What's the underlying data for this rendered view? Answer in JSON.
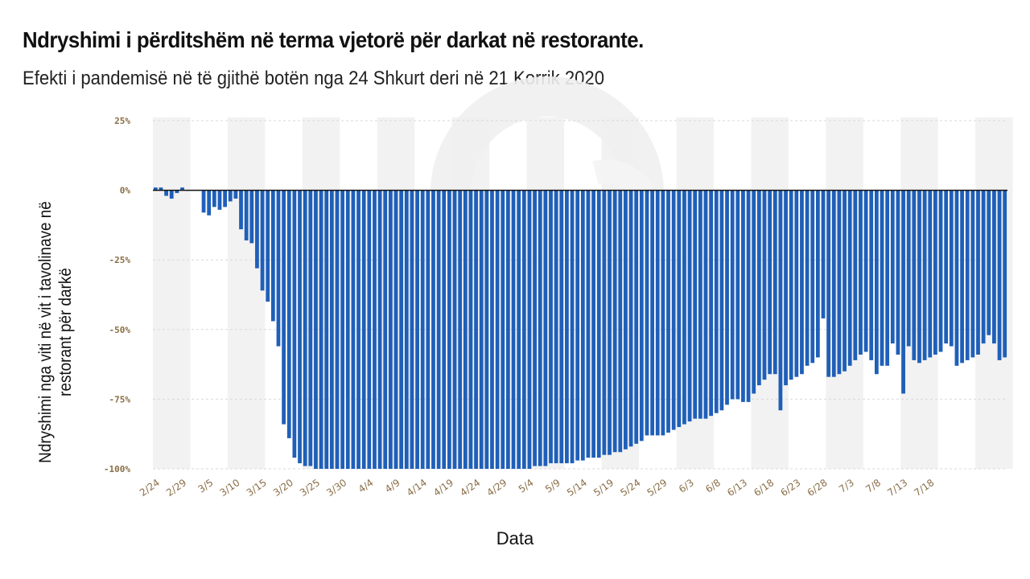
{
  "title": "Ndryshimi i përditshëm në terma vjetorë për darkat në restorante.",
  "subtitle": "Efekti i pandemisë në të gjithë botën nga 24 Shkurt deri në 21 Korrik 2020",
  "chart_data": {
    "type": "bar",
    "xlabel": "Data",
    "ylabel": "Ndryshimi nga viti në vit i tavolinave në restorant për darkë",
    "ylim": [
      -100,
      25
    ],
    "y_ticks": [
      "25%",
      "0%",
      "-25%",
      "-50%",
      "-75%",
      "-100%"
    ],
    "y_tick_values": [
      25,
      0,
      -25,
      -50,
      -75,
      -100
    ],
    "x_tick_labels": [
      "2/24",
      "2/29",
      "3/5",
      "3/10",
      "3/15",
      "3/20",
      "3/25",
      "3/30",
      "4/4",
      "4/9",
      "4/14",
      "4/19",
      "4/24",
      "4/29",
      "5/4",
      "5/9",
      "5/14",
      "5/19",
      "5/24",
      "5/29",
      "6/3",
      "6/8",
      "6/13",
      "6/18",
      "6/23",
      "6/28",
      "7/3",
      "7/8",
      "7/13",
      "7/18"
    ],
    "grid": true,
    "bar_color": "#1f5fb8",
    "start_date": "2/24",
    "end_date": "7/21",
    "values": [
      1,
      1,
      -2,
      -3,
      -1,
      1,
      0,
      0,
      0,
      -8,
      -9,
      -6,
      -7,
      -6,
      -4,
      -3,
      -14,
      -18,
      -19,
      -28,
      -36,
      -40,
      -47,
      -56,
      -84,
      -89,
      -96,
      -98,
      -99,
      -99,
      -100,
      -100,
      -100,
      -100,
      -100,
      -100,
      -100,
      -100,
      -100,
      -100,
      -100,
      -100,
      -100,
      -100,
      -100,
      -100,
      -100,
      -100,
      -100,
      -100,
      -100,
      -100,
      -100,
      -100,
      -100,
      -100,
      -100,
      -100,
      -100,
      -100,
      -100,
      -100,
      -100,
      -100,
      -100,
      -100,
      -100,
      -100,
      -100,
      -100,
      -100,
      -99,
      -99,
      -99,
      -98,
      -98,
      -98,
      -98,
      -98,
      -97,
      -97,
      -96,
      -96,
      -96,
      -95,
      -95,
      -94,
      -94,
      -93,
      -92,
      -91,
      -90,
      -88,
      -88,
      -88,
      -88,
      -87,
      -86,
      -85,
      -84,
      -83,
      -82,
      -82,
      -82,
      -81,
      -80,
      -79,
      -77,
      -75,
      -75,
      -76,
      -76,
      -73,
      -70,
      -68,
      -66,
      -66,
      -79,
      -70,
      -68,
      -67,
      -66,
      -63,
      -62,
      -60,
      -46,
      -67,
      -67,
      -66,
      -65,
      -63,
      -61,
      -59,
      -58,
      -61,
      -66,
      -63,
      -63,
      -55,
      -59,
      -73,
      -56,
      -61,
      -62,
      -61,
      -60,
      -59,
      -58,
      -55,
      -56,
      -63,
      -62,
      -61,
      -60,
      -59,
      -55,
      -52,
      -55,
      -61,
      -60
    ]
  }
}
